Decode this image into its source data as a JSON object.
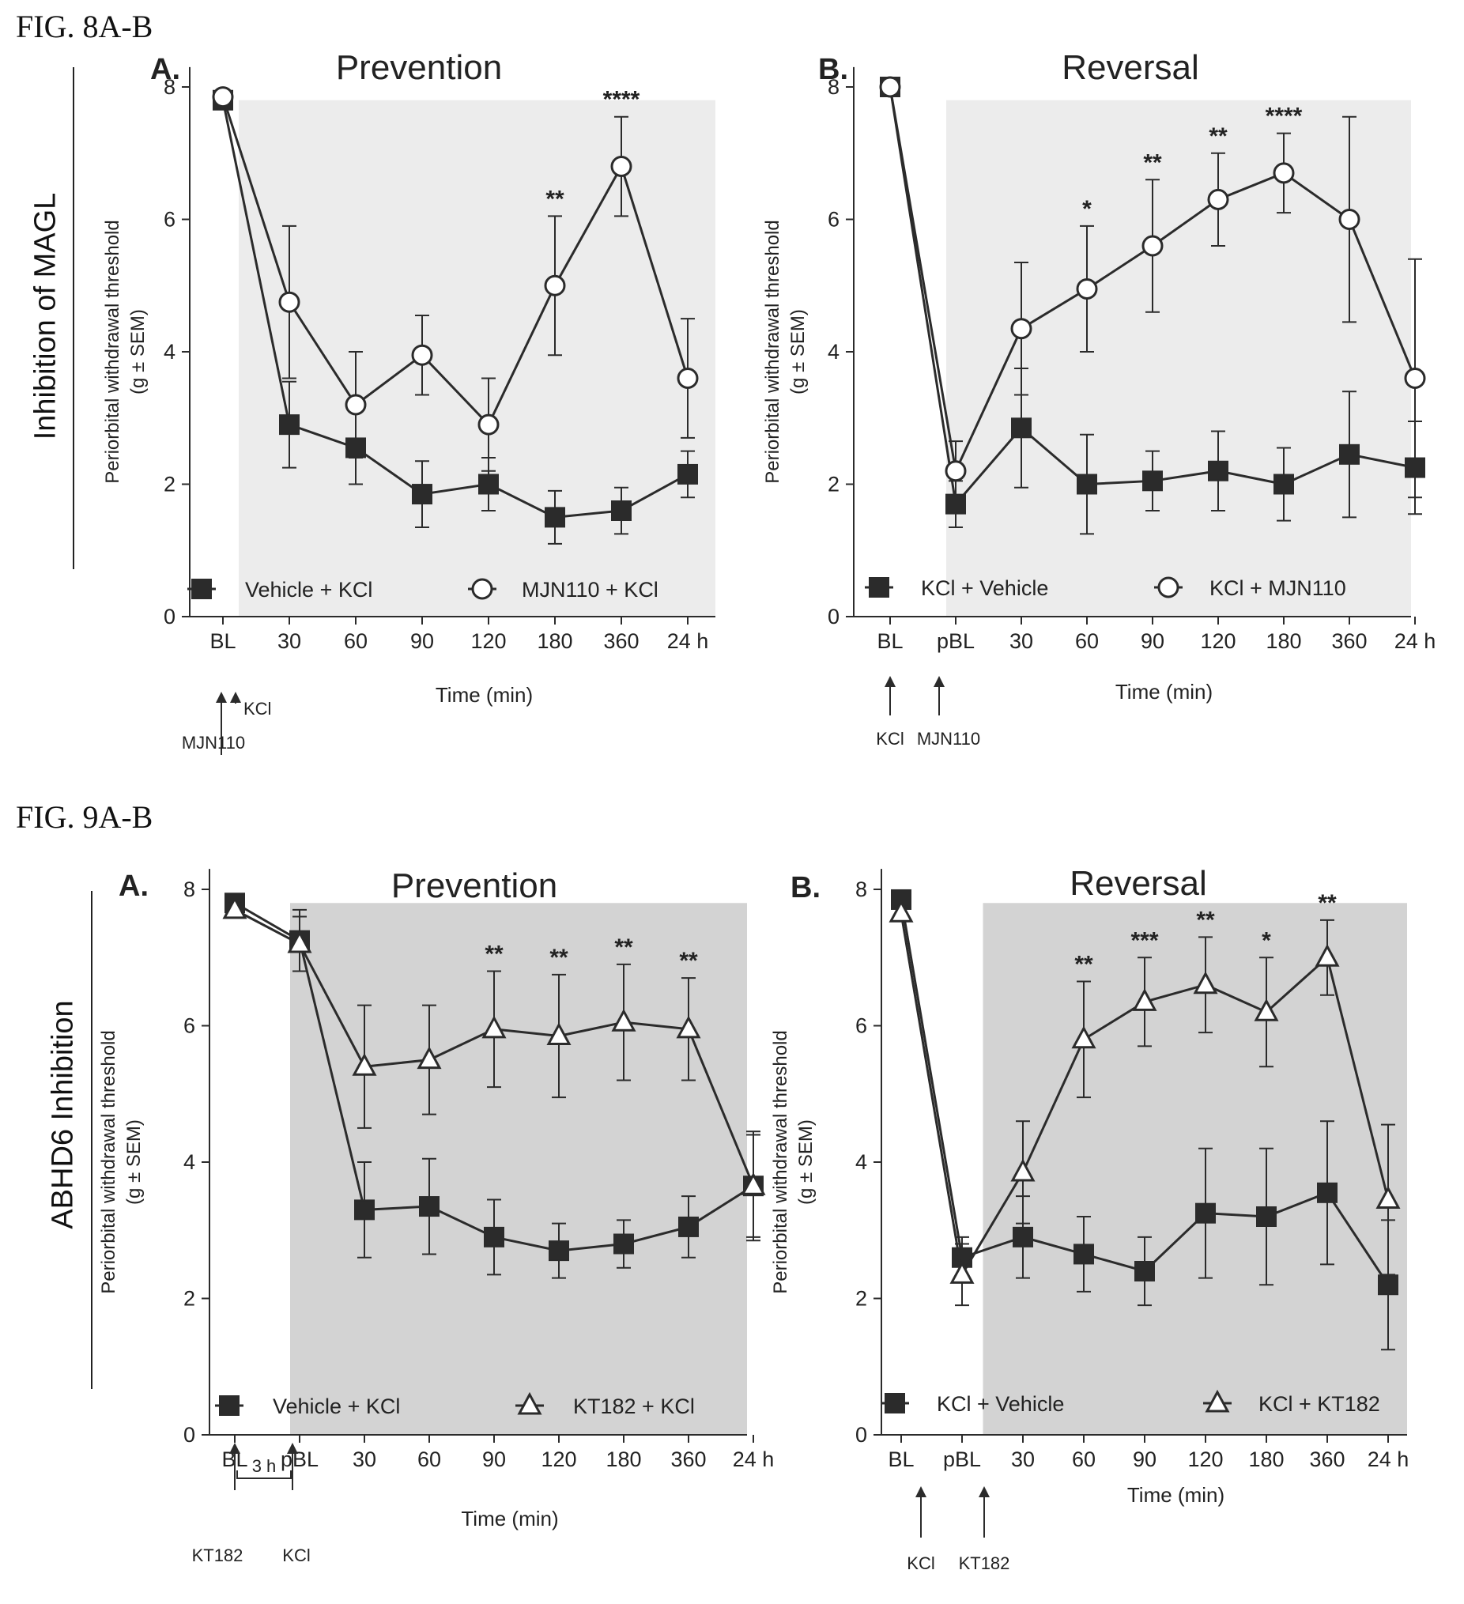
{
  "figures": [
    {
      "label": "FIG. 8A-B",
      "side_label": "Inhibition of MAGL"
    },
    {
      "label": "FIG. 9A-B",
      "side_label": "ABHD6 Inhibition"
    }
  ],
  "colors": {
    "shade_light": "#ececec",
    "shade_dark": "#d3d3d3",
    "line": "#2b2b2b",
    "marker_fill": "#2b2b2b",
    "open_marker": "#ffffff"
  },
  "chart_data": [
    {
      "id": "fig8a",
      "type": "line",
      "panel": "A.",
      "title": "Prevention",
      "xlabel": "Time (min)",
      "ylabel": [
        "Periorbital withdrawal threshold",
        "(g ± SEM)"
      ],
      "categories": [
        "BL",
        "30",
        "60",
        "90",
        "120",
        "180",
        "360",
        "24 h"
      ],
      "ylim": [
        0,
        8
      ],
      "yticks": [
        0,
        2,
        4,
        6,
        8
      ],
      "shaded_from_category": 0,
      "shade": "light",
      "series": [
        {
          "name": "Vehicle + KCl",
          "marker": "square",
          "values": [
            7.8,
            2.9,
            2.55,
            1.85,
            2.0,
            1.5,
            1.6,
            2.15
          ],
          "errors": [
            0.1,
            0.65,
            0.55,
            0.5,
            0.4,
            0.4,
            0.35,
            0.35
          ]
        },
        {
          "name": "MJN110 + KCl",
          "marker": "circle",
          "values": [
            7.85,
            4.75,
            3.2,
            3.95,
            2.9,
            5.0,
            6.8,
            3.6
          ],
          "errors": [
            0.1,
            1.15,
            0.8,
            0.6,
            0.7,
            1.05,
            0.75,
            0.9
          ]
        }
      ],
      "significance": [
        {
          "category": "180",
          "label": "**"
        },
        {
          "category": "360",
          "label": "****"
        }
      ],
      "annotations": [
        "KCl",
        "MJN110"
      ]
    },
    {
      "id": "fig8b",
      "type": "line",
      "panel": "B.",
      "title": "Reversal",
      "xlabel": "Time (min)",
      "ylabel": [
        "Periorbital withdrawal threshold",
        "(g ± SEM)"
      ],
      "categories": [
        "BL",
        "pBL",
        "30",
        "60",
        "90",
        "120",
        "180",
        "360",
        "24 h"
      ],
      "ylim": [
        0,
        8
      ],
      "yticks": [
        0,
        2,
        4,
        6,
        8
      ],
      "shaded_from_category": 1,
      "shade": "light",
      "series": [
        {
          "name": "KCl + Vehicle",
          "marker": "square",
          "values": [
            8.0,
            1.7,
            2.85,
            2.0,
            2.05,
            2.2,
            2.0,
            2.45,
            2.25
          ],
          "errors": [
            0.0,
            0.35,
            0.9,
            0.75,
            0.45,
            0.6,
            0.55,
            0.95,
            0.7
          ]
        },
        {
          "name": "KCl + MJN110",
          "marker": "circle",
          "values": [
            8.0,
            2.2,
            4.35,
            4.95,
            5.6,
            6.3,
            6.7,
            6.0,
            3.6
          ],
          "errors": [
            0.0,
            0.45,
            1.0,
            0.95,
            1.0,
            0.7,
            0.6,
            1.55,
            1.8
          ]
        }
      ],
      "significance": [
        {
          "category": "60",
          "label": "*"
        },
        {
          "category": "90",
          "label": "**"
        },
        {
          "category": "120",
          "label": "**"
        },
        {
          "category": "180",
          "label": "****"
        }
      ],
      "annotations": [
        "KCl",
        "MJN110"
      ]
    },
    {
      "id": "fig9a",
      "type": "line",
      "panel": "A.",
      "title": "Prevention",
      "xlabel": "Time (min)",
      "ylabel": [
        "Periorbital withdrawal threshold",
        "(g ± SEM)"
      ],
      "categories": [
        "BL",
        "pBL",
        "30",
        "60",
        "90",
        "120",
        "180",
        "360",
        "24 h"
      ],
      "ylim": [
        0,
        8
      ],
      "yticks": [
        0,
        2,
        4,
        6,
        8
      ],
      "shaded_from_category": 1,
      "shade": "dark",
      "series": [
        {
          "name": "Vehicle + KCl",
          "marker": "square",
          "values": [
            7.8,
            7.25,
            3.3,
            3.35,
            2.9,
            2.7,
            2.8,
            3.05,
            3.65
          ],
          "errors": [
            0.1,
            0.45,
            0.7,
            0.7,
            0.55,
            0.4,
            0.35,
            0.45,
            0.75
          ]
        },
        {
          "name": "KT182 + KCl",
          "marker": "triangle",
          "values": [
            7.7,
            7.2,
            5.4,
            5.5,
            5.95,
            5.85,
            6.05,
            5.95,
            3.65
          ],
          "errors": [
            0.1,
            0.4,
            0.9,
            0.8,
            0.85,
            0.9,
            0.85,
            0.75,
            0.8
          ]
        }
      ],
      "significance": [
        {
          "category": "90",
          "label": "**"
        },
        {
          "category": "120",
          "label": "**"
        },
        {
          "category": "180",
          "label": "**"
        },
        {
          "category": "360",
          "label": "**"
        }
      ],
      "annotations": [
        "KT182",
        "KCl",
        "3 h"
      ]
    },
    {
      "id": "fig9b",
      "type": "line",
      "panel": "B.",
      "title": "Reversal",
      "xlabel": "Time (min)",
      "ylabel": [
        "Periorbital withdrawal threshold",
        "(g ± SEM)"
      ],
      "categories": [
        "BL",
        "pBL",
        "30",
        "60",
        "90",
        "120",
        "180",
        "360",
        "24 h"
      ],
      "ylim": [
        0,
        8
      ],
      "yticks": [
        0,
        2,
        4,
        6,
        8
      ],
      "shaded_from_category": 1.5,
      "shade": "dark",
      "series": [
        {
          "name": "KCl + Vehicle",
          "marker": "square",
          "values": [
            7.85,
            2.6,
            2.9,
            2.65,
            2.4,
            3.25,
            3.2,
            3.55,
            2.2
          ],
          "errors": [
            0.1,
            0.3,
            0.6,
            0.55,
            0.5,
            0.95,
            1.0,
            1.05,
            0.95
          ]
        },
        {
          "name": "KCl + KT182",
          "marker": "triangle",
          "values": [
            7.65,
            2.35,
            3.85,
            5.8,
            6.35,
            6.6,
            6.2,
            7.0,
            3.45
          ],
          "errors": [
            0.1,
            0.45,
            0.75,
            0.85,
            0.65,
            0.7,
            0.8,
            0.55,
            1.1
          ]
        }
      ],
      "significance": [
        {
          "category": "60",
          "label": "**"
        },
        {
          "category": "90",
          "label": "***"
        },
        {
          "category": "120",
          "label": "**"
        },
        {
          "category": "180",
          "label": "*"
        },
        {
          "category": "360",
          "label": "**"
        }
      ],
      "annotations": [
        "KCl",
        "KT182"
      ]
    }
  ]
}
